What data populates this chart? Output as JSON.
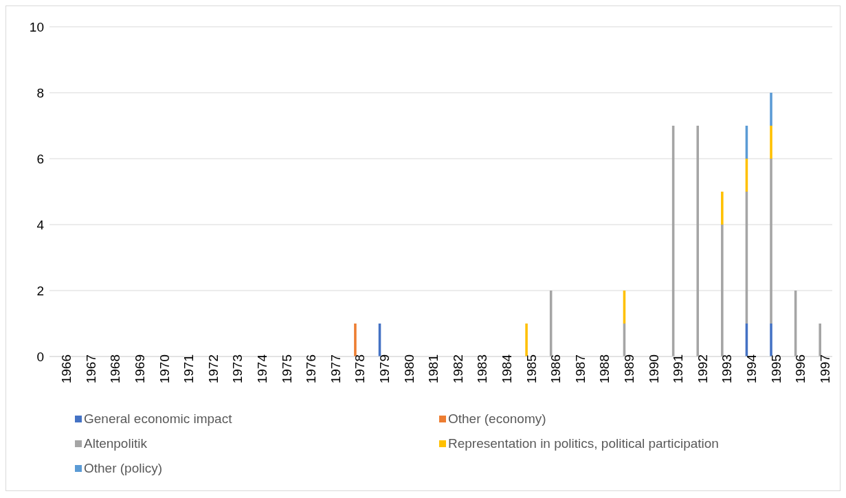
{
  "chart_data": {
    "type": "bar",
    "stacked": true,
    "categories": [
      "1966",
      "1967",
      "1968",
      "1969",
      "1970",
      "1971",
      "1972",
      "1973",
      "1974",
      "1975",
      "1976",
      "1977",
      "1978",
      "1979",
      "1980",
      "1981",
      "1982",
      "1983",
      "1984",
      "1985",
      "1986",
      "1987",
      "1988",
      "1989",
      "1990",
      "1991",
      "1992",
      "1993",
      "1994",
      "1995",
      "1996",
      "1997"
    ],
    "series": [
      {
        "name": "General economic impact",
        "color": "#4472c4",
        "values": [
          null,
          null,
          null,
          null,
          null,
          null,
          null,
          null,
          null,
          null,
          null,
          null,
          null,
          1,
          null,
          null,
          null,
          null,
          null,
          null,
          null,
          null,
          null,
          null,
          null,
          null,
          null,
          null,
          1,
          1,
          null,
          null
        ]
      },
      {
        "name": "Other (economy)",
        "color": "#ed7d31",
        "values": [
          null,
          null,
          null,
          null,
          null,
          null,
          null,
          null,
          null,
          null,
          null,
          null,
          1,
          null,
          null,
          null,
          null,
          null,
          null,
          null,
          null,
          null,
          null,
          null,
          null,
          null,
          null,
          null,
          null,
          null,
          null,
          null
        ]
      },
      {
        "name": "Altenpolitik",
        "color": "#a5a5a5",
        "values": [
          null,
          null,
          null,
          null,
          null,
          null,
          null,
          null,
          null,
          null,
          null,
          null,
          null,
          null,
          null,
          null,
          null,
          null,
          null,
          null,
          2,
          null,
          null,
          1,
          null,
          7,
          7,
          4,
          4,
          5,
          2,
          1
        ]
      },
      {
        "name": "Representation in politics, political participation",
        "color": "#ffc000",
        "values": [
          null,
          null,
          null,
          null,
          null,
          null,
          null,
          null,
          null,
          null,
          null,
          null,
          null,
          null,
          null,
          null,
          null,
          null,
          null,
          1,
          null,
          null,
          null,
          1,
          null,
          null,
          null,
          1,
          1,
          1,
          null,
          null
        ]
      },
      {
        "name": "Other (policy)",
        "color": "#5b9bd5",
        "values": [
          null,
          null,
          null,
          null,
          null,
          null,
          null,
          null,
          null,
          null,
          null,
          null,
          null,
          null,
          null,
          null,
          null,
          null,
          null,
          null,
          null,
          null,
          null,
          null,
          null,
          null,
          null,
          null,
          1,
          1,
          null,
          null
        ]
      }
    ],
    "ylim": [
      0,
      10
    ],
    "yticks": [
      0,
      2,
      4,
      6,
      8,
      10
    ],
    "grid": "y",
    "legend": "bottom"
  }
}
